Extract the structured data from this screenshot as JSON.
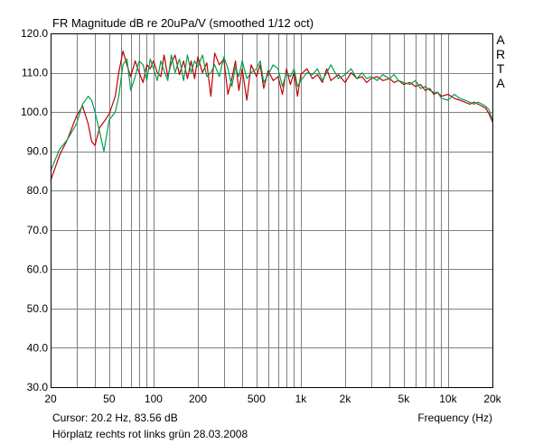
{
  "chart_data": {
    "type": "line",
    "title": "FR Magnitude dB re 20uPa/V (smoothed 1/12 oct)",
    "watermark": "ARTA",
    "xlabel": "Frequency (Hz)",
    "x_scale": "log",
    "xlim": [
      20,
      20000
    ],
    "ylim": [
      30,
      120
    ],
    "y_ticks": [
      30,
      40,
      50,
      60,
      70,
      80,
      90,
      100,
      110,
      120
    ],
    "y_tick_labels": [
      "30.0",
      "40.0",
      "50.0",
      "60.0",
      "70.0",
      "80.0",
      "90.0",
      "100.0",
      "110.0",
      "120.0"
    ],
    "x_ticks": [
      20,
      50,
      100,
      200,
      500,
      1000,
      2000,
      5000,
      10000,
      20000
    ],
    "x_tick_labels": [
      "20",
      "50",
      "100",
      "200",
      "500",
      "1k",
      "2k",
      "5k",
      "10k",
      "20k"
    ],
    "grid": true,
    "colors": {
      "plot_background": "#ffffff",
      "grid": "#808080",
      "series_red": "#c00000",
      "series_green": "#00a050"
    },
    "series": [
      {
        "color": "#c00000",
        "x": [
          20,
          23,
          26,
          30,
          33,
          36,
          38,
          40,
          43,
          46,
          50,
          55,
          58,
          62,
          66,
          70,
          75,
          80,
          85,
          90,
          95,
          100,
          106,
          112,
          118,
          125,
          132,
          140,
          150,
          160,
          170,
          180,
          190,
          200,
          215,
          230,
          245,
          260,
          280,
          300,
          320,
          340,
          360,
          380,
          400,
          430,
          460,
          500,
          530,
          560,
          600,
          650,
          700,
          750,
          800,
          850,
          900,
          950,
          1000,
          1100,
          1200,
          1300,
          1400,
          1500,
          1600,
          1800,
          2000,
          2200,
          2400,
          2600,
          2800,
          3000,
          3300,
          3600,
          4000,
          4300,
          4600,
          5000,
          5500,
          6000,
          6500,
          7000,
          7500,
          8000,
          8500,
          9000,
          10000,
          11000,
          12000,
          13000,
          14000,
          15000,
          16000,
          17000,
          18000,
          19000,
          20000
        ],
        "y": [
          82.5,
          89,
          93,
          99,
          101.5,
          97,
          92.5,
          91.5,
          96,
          97.5,
          99.5,
          104,
          110,
          115.5,
          112,
          109,
          113,
          110,
          107.5,
          112,
          111,
          113,
          110,
          109,
          114.5,
          109,
          112.5,
          114.5,
          109.5,
          113,
          108.5,
          113,
          108.5,
          114,
          110,
          112.5,
          104,
          115,
          112,
          113.5,
          104.5,
          108.5,
          113,
          105.5,
          111,
          103,
          112,
          109,
          112,
          106,
          110.5,
          108,
          109,
          104.5,
          111,
          107,
          110,
          104,
          109.5,
          111,
          108.5,
          109.5,
          107.5,
          111,
          108,
          109.5,
          107.5,
          110,
          108.5,
          109,
          107.5,
          108.5,
          109,
          108,
          108.5,
          107.5,
          108,
          107,
          107.5,
          106.5,
          107,
          105.5,
          106,
          104.5,
          105,
          104,
          104.5,
          103.5,
          103,
          102.5,
          102,
          102.5,
          102,
          101.5,
          101,
          99.5,
          97.5
        ]
      },
      {
        "color": "#00a050",
        "x": [
          20,
          23,
          26,
          30,
          33,
          36,
          38,
          40,
          43,
          46,
          50,
          55,
          58,
          62,
          66,
          70,
          75,
          80,
          85,
          90,
          95,
          100,
          106,
          112,
          118,
          125,
          132,
          140,
          150,
          160,
          170,
          180,
          190,
          200,
          215,
          230,
          245,
          260,
          280,
          300,
          320,
          340,
          360,
          380,
          400,
          430,
          460,
          500,
          530,
          560,
          600,
          650,
          700,
          750,
          800,
          850,
          900,
          950,
          1000,
          1100,
          1200,
          1300,
          1400,
          1500,
          1600,
          1800,
          2000,
          2200,
          2400,
          2600,
          2800,
          3000,
          3300,
          3600,
          4000,
          4300,
          4600,
          5000,
          5500,
          6000,
          6500,
          7000,
          7500,
          8000,
          8500,
          9000,
          10000,
          11000,
          12000,
          13000,
          14000,
          15000,
          16000,
          17000,
          18000,
          19000,
          20000
        ],
        "y": [
          85,
          90.5,
          93,
          97,
          102,
          104,
          103,
          100,
          95,
          90,
          98,
          100,
          104,
          112,
          113.5,
          105.5,
          109,
          113,
          112,
          108,
          113.5,
          111,
          108,
          113,
          110.5,
          108,
          114.5,
          110,
          113.5,
          108,
          114.5,
          110,
          113,
          111.5,
          114.5,
          109,
          110,
          112,
          109,
          114,
          111,
          106.5,
          111.5,
          109,
          113,
          108.5,
          110,
          111,
          113,
          107.5,
          109.5,
          112,
          111,
          106.5,
          110,
          109,
          111,
          106.5,
          108,
          110,
          109.5,
          111,
          108,
          110,
          112,
          108.5,
          109.5,
          111,
          108.5,
          110,
          108.5,
          109,
          108,
          109.5,
          108.5,
          109.5,
          108,
          107.5,
          107,
          108,
          106,
          106.5,
          105.5,
          105,
          105,
          103.5,
          103,
          104.5,
          103.5,
          103,
          102.5,
          102,
          102.5,
          102,
          101.5,
          100.5,
          98
        ]
      }
    ]
  },
  "footer": {
    "cursor": "Cursor: 20.2 Hz, 83.56 dB",
    "note": "Hörplatz rechts rot links grün 28.03.2008"
  }
}
